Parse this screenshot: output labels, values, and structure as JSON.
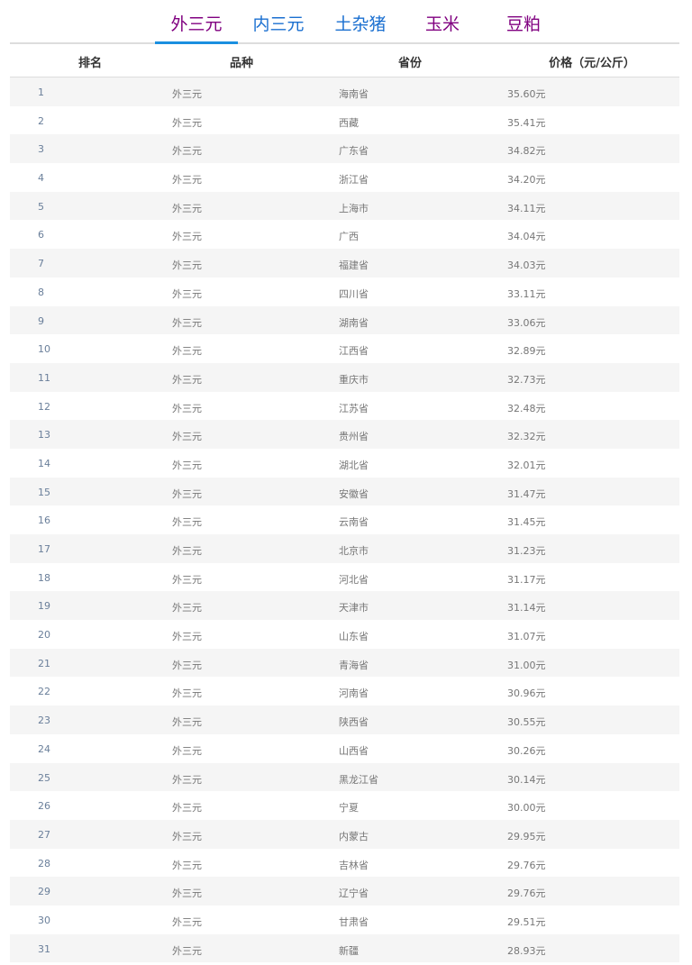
{
  "tabs": [
    {
      "label": "外三元",
      "color": "#800080",
      "active": true
    },
    {
      "label": "内三元",
      "color": "#1a6fd0",
      "active": false
    },
    {
      "label": "土杂猪",
      "color": "#1a6fd0",
      "active": false
    },
    {
      "label": "玉米",
      "color": "#800080",
      "active": false
    },
    {
      "label": "豆粕",
      "color": "#800080",
      "active": false
    }
  ],
  "table": {
    "headers": [
      "排名",
      "品种",
      "省份",
      "价格（元/公斤）"
    ],
    "rows": [
      [
        "1",
        "外三元",
        "海南省",
        "35.60元"
      ],
      [
        "2",
        "外三元",
        "西藏",
        "35.41元"
      ],
      [
        "3",
        "外三元",
        "广东省",
        "34.82元"
      ],
      [
        "4",
        "外三元",
        "浙江省",
        "34.20元"
      ],
      [
        "5",
        "外三元",
        "上海市",
        "34.11元"
      ],
      [
        "6",
        "外三元",
        "广西",
        "34.04元"
      ],
      [
        "7",
        "外三元",
        "福建省",
        "34.03元"
      ],
      [
        "8",
        "外三元",
        "四川省",
        "33.11元"
      ],
      [
        "9",
        "外三元",
        "湖南省",
        "33.06元"
      ],
      [
        "10",
        "外三元",
        "江西省",
        "32.89元"
      ],
      [
        "11",
        "外三元",
        "重庆市",
        "32.73元"
      ],
      [
        "12",
        "外三元",
        "江苏省",
        "32.48元"
      ],
      [
        "13",
        "外三元",
        "贵州省",
        "32.32元"
      ],
      [
        "14",
        "外三元",
        "湖北省",
        "32.01元"
      ],
      [
        "15",
        "外三元",
        "安徽省",
        "31.47元"
      ],
      [
        "16",
        "外三元",
        "云南省",
        "31.45元"
      ],
      [
        "17",
        "外三元",
        "北京市",
        "31.23元"
      ],
      [
        "18",
        "外三元",
        "河北省",
        "31.17元"
      ],
      [
        "19",
        "外三元",
        "天津市",
        "31.14元"
      ],
      [
        "20",
        "外三元",
        "山东省",
        "31.07元"
      ],
      [
        "21",
        "外三元",
        "青海省",
        "31.00元"
      ],
      [
        "22",
        "外三元",
        "河南省",
        "30.96元"
      ],
      [
        "23",
        "外三元",
        "陕西省",
        "30.55元"
      ],
      [
        "24",
        "外三元",
        "山西省",
        "30.26元"
      ],
      [
        "25",
        "外三元",
        "黑龙江省",
        "30.14元"
      ],
      [
        "26",
        "外三元",
        "宁夏",
        "30.00元"
      ],
      [
        "27",
        "外三元",
        "内蒙古",
        "29.95元"
      ],
      [
        "28",
        "外三元",
        "吉林省",
        "29.76元"
      ],
      [
        "29",
        "外三元",
        "辽宁省",
        "29.76元"
      ],
      [
        "30",
        "外三元",
        "甘肃省",
        "29.51元"
      ],
      [
        "31",
        "外三元",
        "新疆",
        "28.93元"
      ]
    ]
  }
}
